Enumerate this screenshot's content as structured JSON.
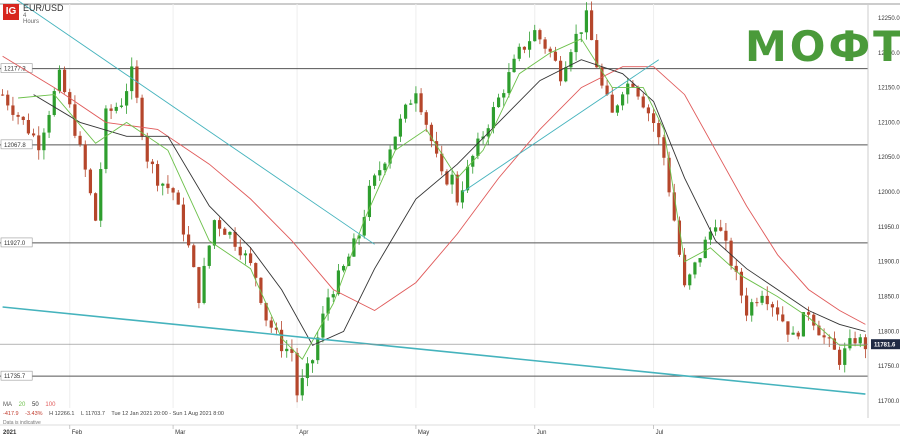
{
  "header": {
    "logo": "IG",
    "symbol": "EUR/USD",
    "timeframe": "4 Hours",
    "brand": "МОФТ"
  },
  "legend": {
    "ma_label": "MA",
    "ma_periods": [
      "20",
      "50",
      "100"
    ],
    "ma_colors": [
      "#6cc04a",
      "#333333",
      "#e05a5a"
    ]
  },
  "stats": {
    "change": "-417.9",
    "change_pct": "-3.43%",
    "high": "H 12266.1",
    "low": "L 11703.7",
    "range": "Tue 12 Jan 2021 20:00 - Sun 1 Aug 2021 8:00"
  },
  "footer_note": "Data is indicative",
  "colors": {
    "bull": "#2e9e2e",
    "bear": "#b5462b",
    "trendline": "#45b3bd",
    "level": "#555555"
  },
  "chart_data": {
    "type": "candlestick",
    "year_label": "2021",
    "xlabels": [
      "Feb",
      "Mar",
      "Apr",
      "May",
      "Jun",
      "Jul"
    ],
    "ylim": [
      11690,
      12270
    ],
    "yticks": [
      11700,
      11750,
      11800,
      11850,
      11900,
      11950,
      12000,
      12050,
      12100,
      12150,
      12200,
      12250
    ],
    "ytick_labels": [
      "11700.0",
      "11750.0",
      "11800.0",
      "11850.0",
      "11900.0",
      "11950.0",
      "12000.0",
      "12050.0",
      "12100.0",
      "12150.0",
      "12200.0",
      "12250.0"
    ],
    "current_price": 11781.6,
    "current_price_label": "11781.6",
    "levels": [
      {
        "value": 12177.3,
        "label": "12177.3"
      },
      {
        "value": 12067.8,
        "label": "12067.8"
      },
      {
        "value": 11927.0,
        "label": "11927.0"
      },
      {
        "value": 11735.7,
        "label": "11735.7"
      }
    ],
    "path": [
      [
        0,
        12140
      ],
      [
        3,
        12110
      ],
      [
        7,
        12070
      ],
      [
        11,
        12165
      ],
      [
        13,
        12120
      ],
      [
        16,
        12030
      ],
      [
        18,
        11960
      ],
      [
        20,
        12110
      ],
      [
        23,
        12130
      ],
      [
        25,
        12170
      ],
      [
        28,
        12050
      ],
      [
        30,
        12020
      ],
      [
        33,
        12000
      ],
      [
        36,
        11920
      ],
      [
        38,
        11850
      ],
      [
        41,
        11960
      ],
      [
        44,
        11940
      ],
      [
        46,
        11920
      ],
      [
        49,
        11880
      ],
      [
        51,
        11820
      ],
      [
        54,
        11780
      ],
      [
        56,
        11770
      ],
      [
        57,
        11710
      ],
      [
        60,
        11760
      ],
      [
        63,
        11850
      ],
      [
        66,
        11890
      ],
      [
        69,
        11940
      ],
      [
        71,
        12000
      ],
      [
        74,
        12050
      ],
      [
        77,
        12100
      ],
      [
        80,
        12150
      ],
      [
        82,
        12100
      ],
      [
        85,
        12020
      ],
      [
        87,
        12020
      ],
      [
        88,
        11990
      ],
      [
        91,
        12050
      ],
      [
        94,
        12100
      ],
      [
        97,
        12150
      ],
      [
        100,
        12200
      ],
      [
        103,
        12230
      ],
      [
        106,
        12200
      ],
      [
        108,
        12170
      ],
      [
        110,
        12210
      ],
      [
        113,
        12250
      ],
      [
        116,
        12150
      ],
      [
        118,
        12110
      ],
      [
        120,
        12150
      ],
      [
        122,
        12160
      ],
      [
        124,
        12130
      ],
      [
        126,
        12100
      ],
      [
        128,
        12050
      ],
      [
        130,
        11960
      ],
      [
        132,
        11860
      ],
      [
        135,
        11910
      ],
      [
        138,
        11960
      ],
      [
        141,
        11900
      ],
      [
        144,
        11830
      ],
      [
        147,
        11860
      ],
      [
        150,
        11830
      ],
      [
        153,
        11790
      ],
      [
        156,
        11830
      ],
      [
        159,
        11790
      ],
      [
        162,
        11760
      ],
      [
        165,
        11790
      ],
      [
        167,
        11780
      ]
    ],
    "ma20": [
      [
        3,
        12135
      ],
      [
        10,
        12140
      ],
      [
        18,
        12070
      ],
      [
        24,
        12100
      ],
      [
        32,
        12060
      ],
      [
        40,
        11930
      ],
      [
        48,
        11890
      ],
      [
        54,
        11790
      ],
      [
        58,
        11760
      ],
      [
        64,
        11840
      ],
      [
        70,
        11960
      ],
      [
        76,
        12060
      ],
      [
        82,
        12090
      ],
      [
        88,
        12020
      ],
      [
        93,
        12060
      ],
      [
        100,
        12170
      ],
      [
        106,
        12200
      ],
      [
        112,
        12220
      ],
      [
        118,
        12150
      ],
      [
        124,
        12150
      ],
      [
        128,
        12090
      ],
      [
        132,
        11900
      ],
      [
        137,
        11920
      ],
      [
        143,
        11880
      ],
      [
        150,
        11850
      ],
      [
        156,
        11820
      ],
      [
        162,
        11780
      ],
      [
        167,
        11780
      ]
    ],
    "ma50": [
      [
        6,
        12140
      ],
      [
        15,
        12100
      ],
      [
        24,
        12080
      ],
      [
        32,
        12080
      ],
      [
        40,
        11980
      ],
      [
        48,
        11920
      ],
      [
        54,
        11860
      ],
      [
        60,
        11780
      ],
      [
        66,
        11800
      ],
      [
        72,
        11890
      ],
      [
        80,
        11990
      ],
      [
        88,
        12040
      ],
      [
        96,
        12100
      ],
      [
        104,
        12160
      ],
      [
        112,
        12190
      ],
      [
        120,
        12170
      ],
      [
        126,
        12130
      ],
      [
        132,
        12020
      ],
      [
        138,
        11930
      ],
      [
        144,
        11890
      ],
      [
        150,
        11860
      ],
      [
        156,
        11830
      ],
      [
        162,
        11810
      ],
      [
        167,
        11800
      ]
    ],
    "ma100": [
      [
        0,
        12195
      ],
      [
        10,
        12150
      ],
      [
        20,
        12100
      ],
      [
        30,
        12090
      ],
      [
        40,
        12040
      ],
      [
        48,
        11990
      ],
      [
        56,
        11930
      ],
      [
        64,
        11860
      ],
      [
        72,
        11830
      ],
      [
        80,
        11870
      ],
      [
        88,
        11940
      ],
      [
        96,
        12020
      ],
      [
        104,
        12090
      ],
      [
        112,
        12150
      ],
      [
        120,
        12180
      ],
      [
        126,
        12180
      ],
      [
        132,
        12140
      ],
      [
        138,
        12060
      ],
      [
        144,
        11980
      ],
      [
        150,
        11910
      ],
      [
        156,
        11860
      ],
      [
        162,
        11830
      ],
      [
        167,
        11810
      ]
    ],
    "trendlines": [
      {
        "from": [
          0,
          12290
        ],
        "to": [
          72,
          11925
        ]
      },
      {
        "from": [
          89,
          12000
        ],
        "to": [
          127,
          12190
        ]
      },
      {
        "from": [
          0,
          11835
        ],
        "to": [
          167,
          11710
        ]
      }
    ]
  }
}
